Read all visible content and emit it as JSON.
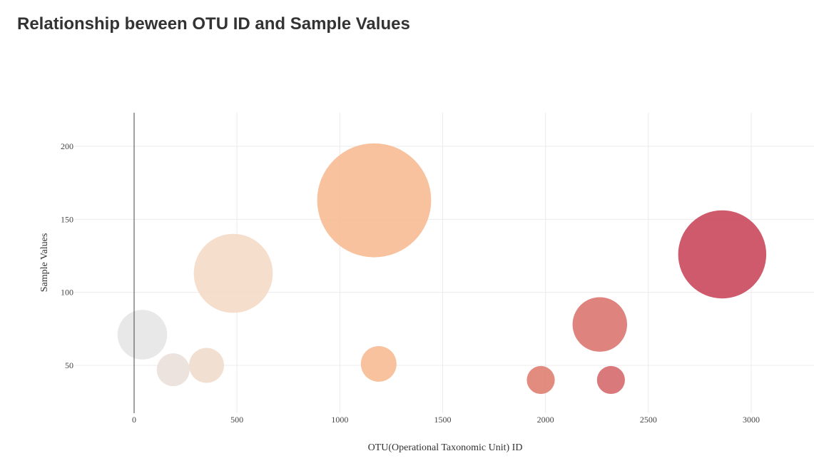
{
  "chart_data": {
    "type": "scatter",
    "title": "Relationship beween OTU ID and Sample Values",
    "xlabel": "OTU(Operational Taxonomic Unit) ID",
    "ylabel": "Sample Values",
    "xlim": [
      -280,
      3280
    ],
    "ylim": [
      18,
      223
    ],
    "x_ticks": [
      0,
      500,
      1000,
      1500,
      2000,
      2500,
      3000
    ],
    "y_ticks": [
      50,
      100,
      150,
      200
    ],
    "grid": true,
    "legend": "none",
    "colorscale": [
      "#e8e8e8",
      "#f7bb94",
      "#c9485c"
    ],
    "points": [
      {
        "x": 40,
        "y": 71,
        "size": 71,
        "color": "#e6e6e6"
      },
      {
        "x": 190,
        "y": 47,
        "size": 47,
        "color": "#ebe0da"
      },
      {
        "x": 352,
        "y": 50,
        "size": 50,
        "color": "#efdccd"
      },
      {
        "x": 482,
        "y": 113,
        "size": 113,
        "color": "#f5dac7"
      },
      {
        "x": 1167,
        "y": 163,
        "size": 163,
        "color": "#f7bb94"
      },
      {
        "x": 1189,
        "y": 51,
        "size": 51,
        "color": "#f7bb94"
      },
      {
        "x": 1977,
        "y": 40,
        "size": 40,
        "color": "#df7f72"
      },
      {
        "x": 2264,
        "y": 78,
        "size": 78,
        "color": "#da7570"
      },
      {
        "x": 2318,
        "y": 40,
        "size": 40,
        "color": "#d66a6d"
      },
      {
        "x": 2859,
        "y": 126,
        "size": 126,
        "color": "#c9485c"
      }
    ]
  }
}
